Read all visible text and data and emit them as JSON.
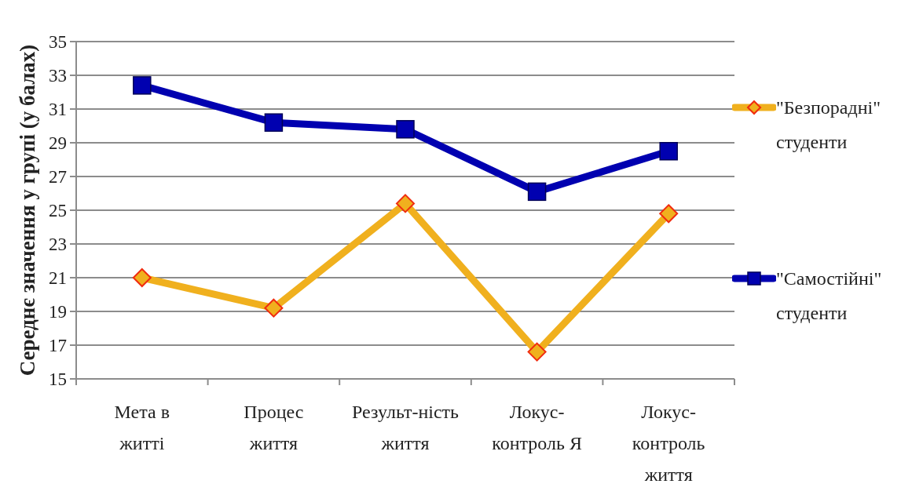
{
  "chart_data": {
    "type": "line",
    "ylabel": "Середнє значення у групі (у балах)",
    "categories": [
      "Мета в житті",
      "Процес життя",
      "Результ-ність життя",
      "Локус-контроль Я",
      "Локус-контроль життя"
    ],
    "series": [
      {
        "name": "\"Безпорадні\" студенти",
        "color": "#f0b01e",
        "marker": "diamond",
        "values": [
          21.0,
          19.2,
          25.4,
          16.6,
          24.8
        ]
      },
      {
        "name": "\"Самостійні\" студенти",
        "color": "#0000b0",
        "marker": "square",
        "values": [
          32.4,
          30.2,
          29.8,
          26.1,
          28.5
        ]
      }
    ],
    "ylim": [
      15,
      35
    ],
    "yticks": [
      15,
      17,
      19,
      21,
      23,
      25,
      27,
      29,
      31,
      33,
      35
    ],
    "grid": "y",
    "legend": "right",
    "line_style": "solid"
  }
}
